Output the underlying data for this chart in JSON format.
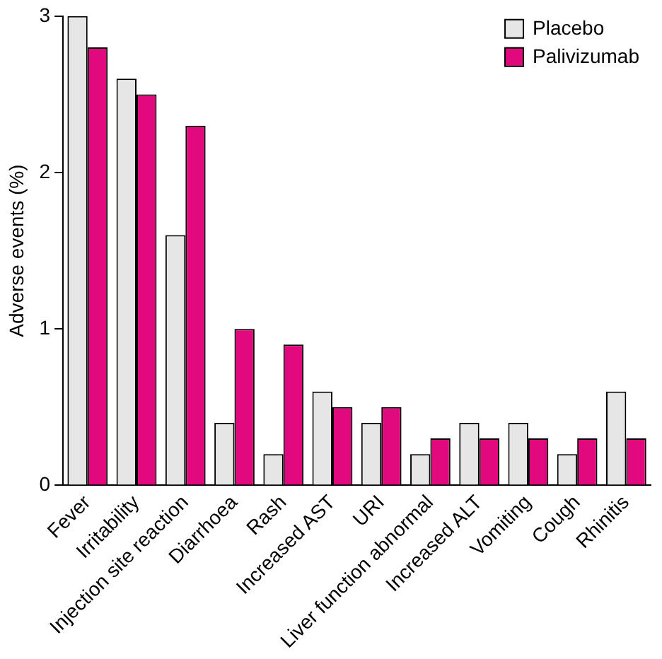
{
  "chart_data": {
    "type": "bar",
    "ylabel": "Adverse events (%)",
    "categories": [
      "Fever",
      "Irritability",
      "Injection site reaction",
      "Diarrhoea",
      "Rash",
      "Increased AST",
      "URI",
      "Liver function abnormal",
      "Increased ALT",
      "Vomiting",
      "Cough",
      "Rhinitis"
    ],
    "series": [
      {
        "name": "Placebo",
        "color": "#e6e6e6",
        "values": [
          3.0,
          2.6,
          1.6,
          0.4,
          0.2,
          0.6,
          0.4,
          0.2,
          0.4,
          0.4,
          0.2,
          0.6
        ]
      },
      {
        "name": "Palivizumab",
        "color": "#e2097f",
        "values": [
          2.8,
          2.5,
          2.3,
          1.0,
          0.9,
          0.5,
          0.5,
          0.3,
          0.3,
          0.3,
          0.3,
          0.3
        ]
      }
    ],
    "ylim": [
      0,
      3
    ],
    "yticks": [
      0,
      1,
      2,
      3
    ],
    "grid": false,
    "legend": "top right"
  }
}
